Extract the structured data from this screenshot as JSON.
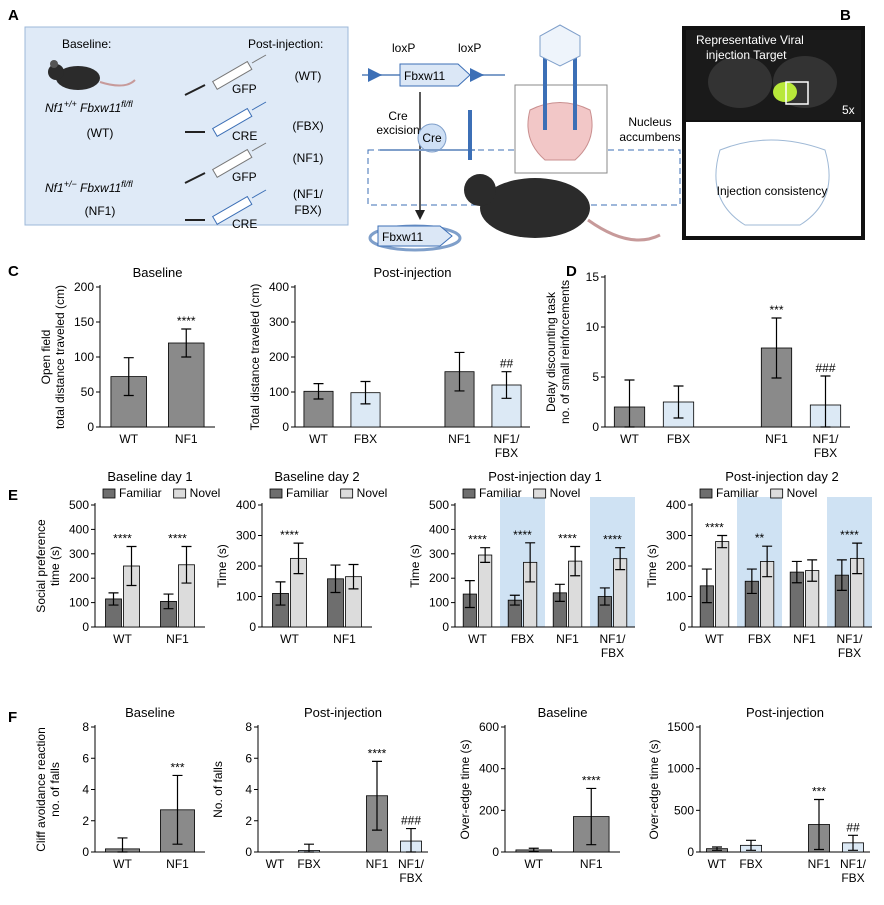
{
  "panel_letters": [
    "A",
    "B",
    "C",
    "D",
    "E",
    "F"
  ],
  "panel_a": {
    "baseline_title": "Baseline:",
    "post_title": "Post-injection:",
    "genotypes": [
      {
        "gene1": "Nf1",
        "sup1": "+/+",
        "gene2": " Fbxw11",
        "sup2": "fl/fl",
        "group": "(WT)"
      },
      {
        "gene1": "Nf1",
        "sup1": "+/−",
        "gene2": " Fbxw11",
        "sup2": "fl/fl",
        "group": "(NF1)"
      }
    ],
    "vectors": [
      "GFP",
      "CRE",
      "GFP",
      "CRE"
    ],
    "groups": [
      [
        "(WT)"
      ],
      [
        "(FBX)"
      ],
      [
        "(NF1)"
      ],
      [
        "(NF1/",
        "FBX)"
      ]
    ],
    "construct": {
      "loxp_left": "loxP",
      "loxp_right": "loxP",
      "gene": "Fbxw11",
      "excision": [
        "Cre",
        "excision"
      ],
      "cre": "Cre",
      "gene_after": "Fbxw11",
      "target": [
        "Nucleus",
        "accumbens"
      ]
    }
  },
  "panel_b": {
    "top_label": [
      "Representative Viral",
      "injection Target"
    ],
    "magnification": "5x",
    "bottom_label": "Injection consistency"
  },
  "chart_data": [
    {
      "type": "bar",
      "title": "Baseline",
      "ylabel": [
        "Open field",
        "total distance traveled (cm)"
      ],
      "categories": [
        "WT",
        "NF1"
      ],
      "values": [
        72,
        120
      ],
      "errors": [
        27,
        20
      ],
      "colors": [
        "#8a8a8a",
        "#8a8a8a"
      ],
      "annotations": [
        null,
        "****"
      ],
      "ylim": [
        0,
        200
      ],
      "yticks": [
        0,
        50,
        100,
        150,
        200
      ]
    },
    {
      "type": "bar",
      "title": "Post-injection",
      "ylabel": [
        "Total distance traveled (cm)"
      ],
      "categories": [
        "WT",
        "FBX",
        null,
        "NF1",
        "NF1/FBX"
      ],
      "values": [
        102,
        98,
        null,
        158,
        120
      ],
      "errors": [
        22,
        32,
        null,
        55,
        38
      ],
      "colors": [
        "#8a8a8a",
        "#dce9f5",
        null,
        "#8a8a8a",
        "#dce9f5"
      ],
      "annotations": [
        null,
        null,
        null,
        null,
        "##"
      ],
      "ylim": [
        0,
        400
      ],
      "yticks": [
        0,
        100,
        200,
        300,
        400
      ]
    },
    {
      "type": "bar",
      "ylabel": [
        "Delay discounting task",
        "no. of small reinforcements"
      ],
      "categories": [
        "WT",
        "FBX",
        null,
        "NF1",
        "NF1/FBX"
      ],
      "values": [
        2,
        2.5,
        null,
        7.9,
        2.2
      ],
      "errors": [
        2.7,
        1.6,
        null,
        3,
        2.9
      ],
      "colors": [
        "#8a8a8a",
        "#dce9f5",
        null,
        "#8a8a8a",
        "#dce9f5"
      ],
      "annotations": [
        null,
        null,
        null,
        "***",
        "###"
      ],
      "ylim": [
        0,
        15
      ],
      "yticks": [
        0,
        5,
        10,
        15
      ]
    },
    {
      "type": "grouped_bar",
      "title": "Baseline day 1",
      "ylabel": [
        "Social preference",
        "time (s)"
      ],
      "categories": [
        "WT",
        "NF1"
      ],
      "series": [
        {
          "name": "Familiar",
          "color": "#6e6e6e",
          "values": [
            115,
            105
          ],
          "errors": [
            25,
            30
          ]
        },
        {
          "name": "Novel",
          "color": "#dcdcdc",
          "values": [
            250,
            255
          ],
          "errors": [
            80,
            75
          ]
        }
      ],
      "annotations": [
        "****",
        "****"
      ],
      "ylim": [
        0,
        500
      ],
      "yticks": [
        0,
        100,
        200,
        300,
        400,
        500
      ]
    },
    {
      "type": "grouped_bar",
      "title": "Baseline day 2",
      "ylabel": [
        "Time (s)"
      ],
      "categories": [
        "WT",
        "NF1"
      ],
      "series": [
        {
          "name": "Familiar",
          "color": "#6e6e6e",
          "values": [
            110,
            158
          ],
          "errors": [
            38,
            45
          ]
        },
        {
          "name": "Novel",
          "color": "#dcdcdc",
          "values": [
            225,
            165
          ],
          "errors": [
            50,
            40
          ]
        }
      ],
      "annotations": [
        "****",
        null
      ],
      "ylim": [
        0,
        400
      ],
      "yticks": [
        0,
        100,
        200,
        300,
        400
      ]
    },
    {
      "type": "grouped_bar",
      "title": "Post-injection day 1",
      "ylabel": [
        "Time (s)"
      ],
      "categories": [
        "WT",
        "FBX",
        "NF1",
        "NF1/FBX"
      ],
      "series": [
        {
          "name": "Familiar",
          "color": "#6e6e6e",
          "values": [
            135,
            110,
            140,
            125
          ],
          "errors": [
            55,
            20,
            35,
            35
          ]
        },
        {
          "name": "Novel",
          "color": "#dcdcdc",
          "values": [
            295,
            265,
            270,
            280
          ],
          "errors": [
            30,
            80,
            60,
            45
          ]
        }
      ],
      "annotations": [
        "****",
        "****",
        "****",
        "****"
      ],
      "highlight": [
        1,
        3
      ],
      "highlight_color": "#cfe2f3",
      "ylim": [
        0,
        500
      ],
      "yticks": [
        0,
        100,
        200,
        300,
        400,
        500
      ]
    },
    {
      "type": "grouped_bar",
      "title": "Post-injection day 2",
      "ylabel": [
        "Time (s)"
      ],
      "categories": [
        "WT",
        "FBX",
        "NF1",
        "NF1/FBX"
      ],
      "series": [
        {
          "name": "Familiar",
          "color": "#6e6e6e",
          "values": [
            135,
            150,
            180,
            170
          ],
          "errors": [
            55,
            40,
            35,
            50
          ]
        },
        {
          "name": "Novel",
          "color": "#dcdcdc",
          "values": [
            280,
            215,
            185,
            225
          ],
          "errors": [
            20,
            50,
            35,
            50
          ]
        }
      ],
      "annotations": [
        "****",
        "**",
        null,
        "****"
      ],
      "highlight": [
        1,
        3
      ],
      "highlight_color": "#cfe2f3",
      "ylim": [
        0,
        400
      ],
      "yticks": [
        0,
        100,
        200,
        300,
        400
      ]
    },
    {
      "type": "bar",
      "title": "Baseline",
      "ylabel": [
        "Cliff avoidance reaction",
        "no. of falls"
      ],
      "categories": [
        "WT",
        "NF1"
      ],
      "values": [
        0.2,
        2.7
      ],
      "errors": [
        0.7,
        2.2
      ],
      "colors": [
        "#8a8a8a",
        "#8a8a8a"
      ],
      "annotations": [
        null,
        "***"
      ],
      "ylim": [
        0,
        8
      ],
      "yticks": [
        0,
        2,
        4,
        6,
        8
      ]
    },
    {
      "type": "bar",
      "title": "Post-injection",
      "ylabel": [
        "No. of falls"
      ],
      "categories": [
        "WT",
        "FBX",
        null,
        "NF1",
        "NF1/FBX"
      ],
      "values": [
        0,
        0.1,
        null,
        3.6,
        0.7
      ],
      "errors": [
        0,
        0.4,
        null,
        2.2,
        0.8
      ],
      "colors": [
        "#8a8a8a",
        "#dce9f5",
        null,
        "#8a8a8a",
        "#dce9f5"
      ],
      "annotations": [
        null,
        null,
        null,
        "****",
        "###"
      ],
      "ylim": [
        0,
        8
      ],
      "yticks": [
        0,
        2,
        4,
        6,
        8
      ]
    },
    {
      "type": "bar",
      "title": "Baseline",
      "ylabel": [
        "Over-edge time (s)"
      ],
      "categories": [
        "WT",
        "NF1"
      ],
      "values": [
        10,
        170
      ],
      "errors": [
        8,
        135
      ],
      "colors": [
        "#8a8a8a",
        "#8a8a8a"
      ],
      "annotations": [
        null,
        "****"
      ],
      "ylim": [
        0,
        600
      ],
      "yticks": [
        0,
        200,
        400,
        600
      ]
    },
    {
      "type": "bar",
      "title": "Post-injection",
      "ylabel": [
        "Over-edge time (s)"
      ],
      "categories": [
        "WT",
        "FBX",
        null,
        "NF1",
        "NF1/FBX"
      ],
      "values": [
        40,
        80,
        null,
        330,
        110
      ],
      "errors": [
        20,
        60,
        null,
        300,
        90
      ],
      "colors": [
        "#8a8a8a",
        "#dce9f5",
        null,
        "#8a8a8a",
        "#dce9f5"
      ],
      "annotations": [
        null,
        null,
        null,
        "***",
        "##"
      ],
      "ylim": [
        0,
        1500
      ],
      "yticks": [
        0,
        500,
        1000,
        1500
      ]
    }
  ]
}
